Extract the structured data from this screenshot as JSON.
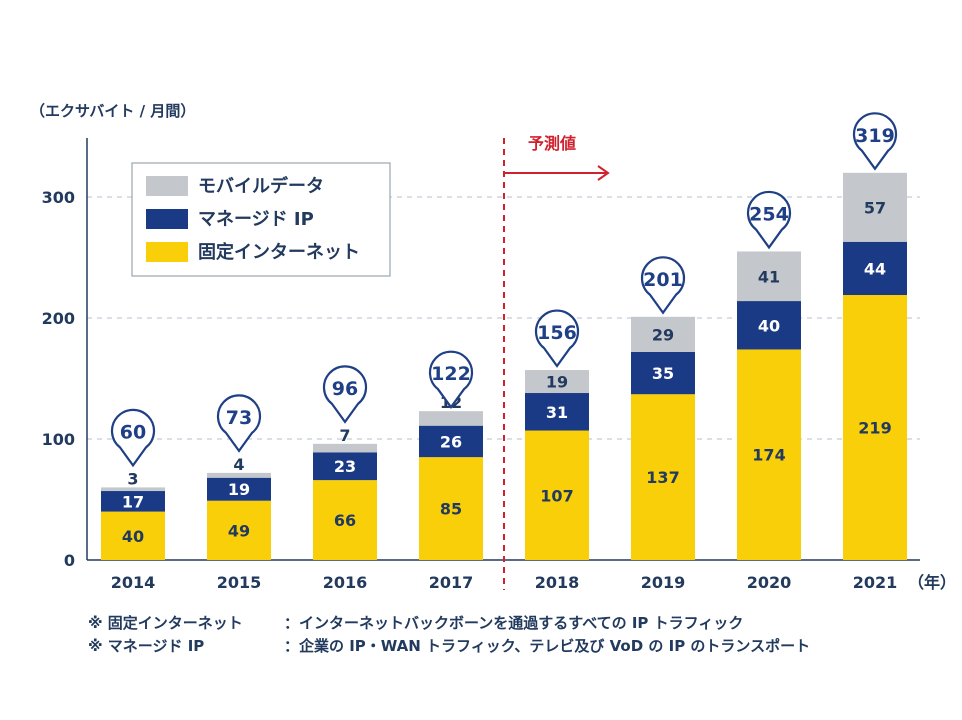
{
  "chart_data": {
    "type": "bar",
    "stacked": true,
    "unit_label": "（エクサバイト / 月間）",
    "x_unit_label": "（年）",
    "categories": [
      "2014",
      "2015",
      "2016",
      "2017",
      "2018",
      "2019",
      "2020",
      "2021"
    ],
    "series": [
      {
        "name": "固定インターネット",
        "color": "#f9cf0a",
        "values": [
          40,
          49,
          66,
          85,
          107,
          137,
          174,
          219
        ]
      },
      {
        "name": "マネージド IP",
        "color": "#1a3a86",
        "values": [
          17,
          19,
          23,
          26,
          31,
          35,
          40,
          44
        ]
      },
      {
        "name": "モバイルデータ",
        "color": "#c4c8cc",
        "values": [
          3,
          4,
          7,
          12,
          19,
          29,
          41,
          57
        ]
      }
    ],
    "legend_order": [
      "モバイルデータ",
      "マネージド IP",
      "固定インターネット"
    ],
    "totals": [
      "60",
      "73",
      "96",
      "122",
      "156",
      "201",
      "254",
      "319"
    ],
    "ylim": [
      0,
      350
    ],
    "yticks": [
      "0",
      "100",
      "200",
      "300"
    ],
    "forecast_label": "予測値",
    "forecast_start_category": "2018",
    "grid": "horizontal dashed",
    "legend_position": "top-left"
  },
  "notes": [
    {
      "label": "※ 固定インターネット",
      "text": "：インターネットバックボーンを通過するすべての IP トラフィック"
    },
    {
      "label": "※ マネージド IP",
      "text": "：企業の IP・WAN トラフィック、テレビ及び VoD の IP のトランスポート"
    }
  ]
}
